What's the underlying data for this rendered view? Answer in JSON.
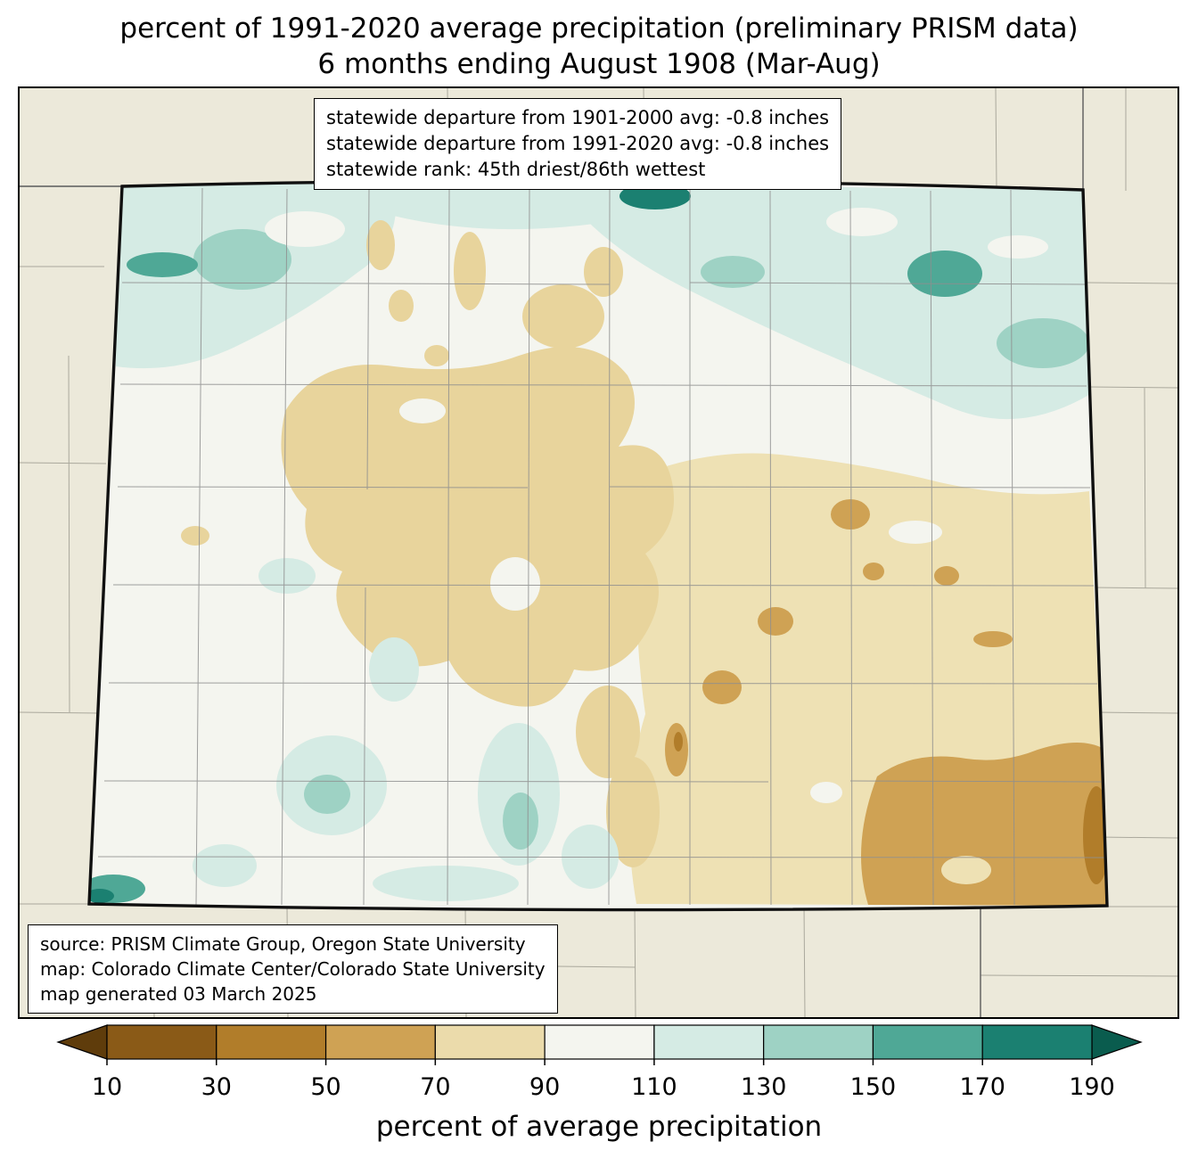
{
  "title": {
    "line1": "percent of 1991-2020 average precipitation (preliminary PRISM data)",
    "line2": "6 months ending August 1908 (Mar-Aug)"
  },
  "stats_box": {
    "line1": "statewide departure from 1901-2000 avg: -0.8 inches",
    "line2": "statewide departure from 1991-2020 avg: -0.8 inches",
    "line3": "statewide rank: 45th driest/86th wettest"
  },
  "source_box": {
    "line1": "source: PRISM Climate Group, Oregon State University",
    "line2": "map: Colorado Climate Center/Colorado State University",
    "line3": "map generated 03 March 2025"
  },
  "colorbar": {
    "label": "percent of average precipitation",
    "ticks": [
      "10",
      "30",
      "50",
      "70",
      "90",
      "110",
      "130",
      "150",
      "170",
      "190"
    ],
    "palette": [
      "#5f3c0b",
      "#8a5a17",
      "#b17d2a",
      "#cfa254",
      "#ebdbab",
      "#f4f5ef",
      "#d5ebe4",
      "#9ed2c4",
      "#4fa896",
      "#1b8071",
      "#0a5c4e"
    ]
  },
  "map": {
    "colors": {
      "outside_background": "#ece9da",
      "state_fill": "#f4f5ef",
      "tan_central": "#e8d49c",
      "tan_east": "#eee1b4",
      "county_line": "#8f8f8f",
      "outside_line": "#aaa89c",
      "state_border": "#101010"
    }
  }
}
